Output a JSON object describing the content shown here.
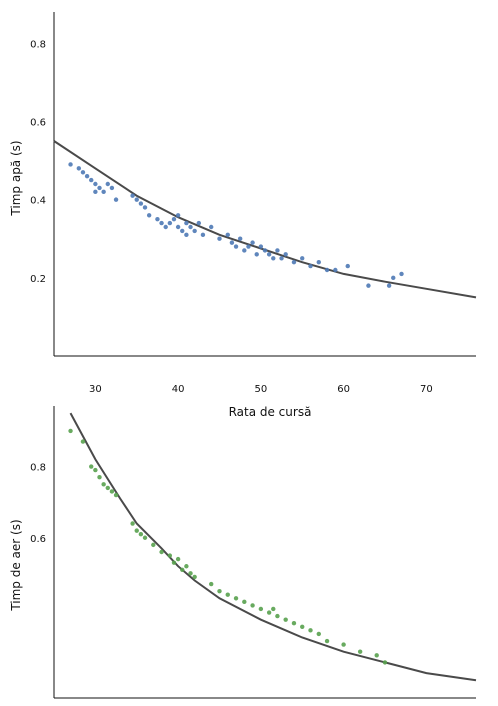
{
  "chart_data": [
    {
      "type": "scatter",
      "title": "",
      "xlabel": "Rata de cursă",
      "ylabel": "Timp apă (s)",
      "xlim": [
        25,
        76
      ],
      "ylim": [
        0,
        0.88
      ],
      "xticks": [
        30,
        40,
        50,
        60,
        70
      ],
      "yticks": [
        0.2,
        0.4,
        0.6,
        0.8
      ],
      "grid": false,
      "legend": "none",
      "color": "#4e79b5",
      "fit_color": "#4a4a4a",
      "fit_curve": [
        [
          25,
          0.55
        ],
        [
          30,
          0.48
        ],
        [
          35,
          0.41
        ],
        [
          40,
          0.355
        ],
        [
          45,
          0.31
        ],
        [
          50,
          0.275
        ],
        [
          55,
          0.24
        ],
        [
          60,
          0.21
        ],
        [
          65,
          0.19
        ],
        [
          70,
          0.172
        ],
        [
          76,
          0.15
        ]
      ],
      "points": [
        [
          27.0,
          0.49
        ],
        [
          28.0,
          0.48
        ],
        [
          28.5,
          0.47
        ],
        [
          29.0,
          0.46
        ],
        [
          29.5,
          0.45
        ],
        [
          30.0,
          0.44
        ],
        [
          30.0,
          0.42
        ],
        [
          30.5,
          0.43
        ],
        [
          31.0,
          0.42
        ],
        [
          31.5,
          0.44
        ],
        [
          32.0,
          0.43
        ],
        [
          32.5,
          0.4
        ],
        [
          34.5,
          0.41
        ],
        [
          35.0,
          0.4
        ],
        [
          35.5,
          0.39
        ],
        [
          36.0,
          0.38
        ],
        [
          36.5,
          0.36
        ],
        [
          37.5,
          0.35
        ],
        [
          38.0,
          0.34
        ],
        [
          38.5,
          0.33
        ],
        [
          39.0,
          0.34
        ],
        [
          39.5,
          0.35
        ],
        [
          40.0,
          0.36
        ],
        [
          40.0,
          0.33
        ],
        [
          40.5,
          0.32
        ],
        [
          41.0,
          0.34
        ],
        [
          41.0,
          0.31
        ],
        [
          41.5,
          0.33
        ],
        [
          42.0,
          0.32
        ],
        [
          42.5,
          0.34
        ],
        [
          43.0,
          0.31
        ],
        [
          44.0,
          0.33
        ],
        [
          45.0,
          0.3
        ],
        [
          46.0,
          0.31
        ],
        [
          46.5,
          0.29
        ],
        [
          47.0,
          0.28
        ],
        [
          47.5,
          0.3
        ],
        [
          48.0,
          0.27
        ],
        [
          48.5,
          0.28
        ],
        [
          49.0,
          0.29
        ],
        [
          49.5,
          0.26
        ],
        [
          50.0,
          0.28
        ],
        [
          50.5,
          0.27
        ],
        [
          51.0,
          0.26
        ],
        [
          51.5,
          0.25
        ],
        [
          52.0,
          0.27
        ],
        [
          52.5,
          0.25
        ],
        [
          53.0,
          0.26
        ],
        [
          54.0,
          0.24
        ],
        [
          55.0,
          0.25
        ],
        [
          56.0,
          0.23
        ],
        [
          57.0,
          0.24
        ],
        [
          58.0,
          0.22
        ],
        [
          59.0,
          0.22
        ],
        [
          60.5,
          0.23
        ],
        [
          63.0,
          0.18
        ],
        [
          66.0,
          0.2
        ],
        [
          67.0,
          0.21
        ],
        [
          65.5,
          0.18
        ]
      ]
    },
    {
      "type": "scatter",
      "title": "",
      "xlabel": "",
      "ylabel": "Timp de aer (s)",
      "xlim": [
        25,
        76
      ],
      "ylim": [
        0.15,
        0.97
      ],
      "xticks": [],
      "yticks": [
        0.6,
        0.8
      ],
      "tick_labels_shown": [
        "0.6",
        "0.8"
      ],
      "grid": false,
      "legend": "none",
      "color": "#58a14e",
      "fit_color": "#4a4a4a",
      "fit_curve": [
        [
          27,
          0.95
        ],
        [
          30,
          0.82
        ],
        [
          33,
          0.71
        ],
        [
          35,
          0.64
        ],
        [
          38,
          0.57
        ],
        [
          40,
          0.52
        ],
        [
          42,
          0.48
        ],
        [
          45,
          0.43
        ],
        [
          50,
          0.37
        ],
        [
          55,
          0.32
        ],
        [
          60,
          0.28
        ],
        [
          65,
          0.25
        ],
        [
          70,
          0.22
        ],
        [
          76,
          0.2
        ]
      ],
      "points": [
        [
          27.0,
          0.9
        ],
        [
          28.5,
          0.87
        ],
        [
          29.5,
          0.8
        ],
        [
          30.0,
          0.79
        ],
        [
          30.5,
          0.77
        ],
        [
          31.0,
          0.75
        ],
        [
          31.5,
          0.74
        ],
        [
          32.0,
          0.73
        ],
        [
          32.5,
          0.72
        ],
        [
          34.5,
          0.64
        ],
        [
          35.0,
          0.62
        ],
        [
          35.5,
          0.61
        ],
        [
          36.0,
          0.6
        ],
        [
          37.0,
          0.58
        ],
        [
          38.0,
          0.56
        ],
        [
          39.0,
          0.55
        ],
        [
          39.5,
          0.53
        ],
        [
          40.0,
          0.54
        ],
        [
          40.5,
          0.51
        ],
        [
          41.0,
          0.52
        ],
        [
          41.5,
          0.5
        ],
        [
          42.0,
          0.49
        ],
        [
          44.0,
          0.47
        ],
        [
          45.0,
          0.45
        ],
        [
          46.0,
          0.44
        ],
        [
          47.0,
          0.43
        ],
        [
          48.0,
          0.42
        ],
        [
          49.0,
          0.41
        ],
        [
          50.0,
          0.4
        ],
        [
          51.0,
          0.39
        ],
        [
          51.5,
          0.4
        ],
        [
          52.0,
          0.38
        ],
        [
          53.0,
          0.37
        ],
        [
          54.0,
          0.36
        ],
        [
          55.0,
          0.35
        ],
        [
          56.0,
          0.34
        ],
        [
          57.0,
          0.33
        ],
        [
          58.0,
          0.31
        ],
        [
          60.0,
          0.3
        ],
        [
          62.0,
          0.28
        ],
        [
          64.0,
          0.27
        ],
        [
          65.0,
          0.25
        ]
      ]
    }
  ]
}
